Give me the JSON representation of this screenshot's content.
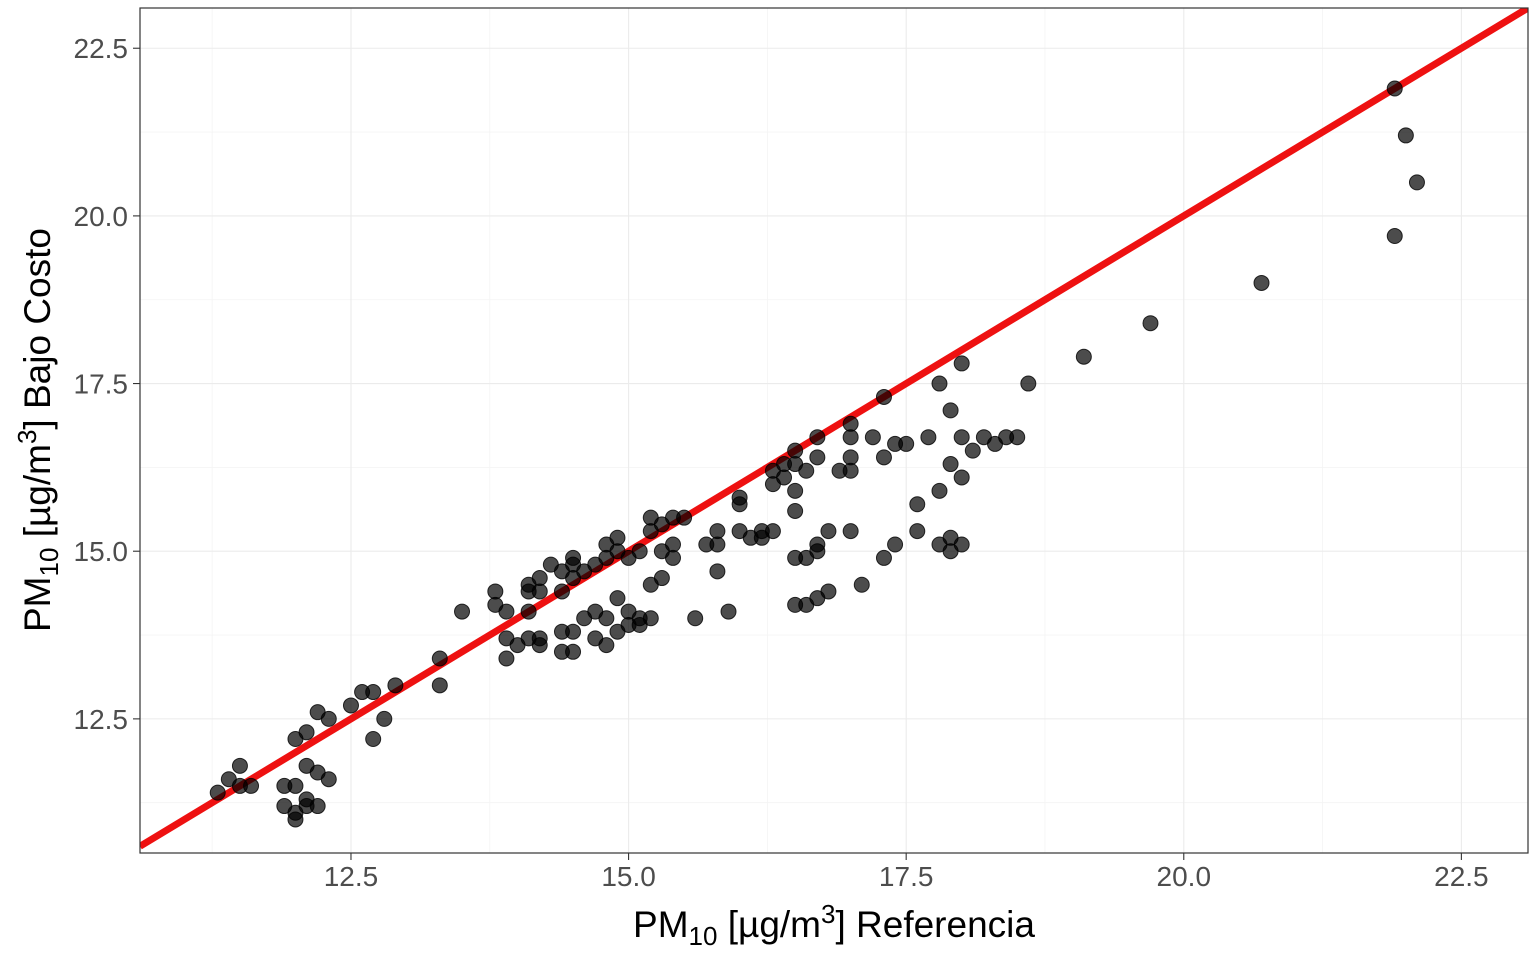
{
  "chart_data": {
    "type": "scatter",
    "xlabel": {
      "main": "PM",
      "sub": "10",
      "pre_unit": " [µg/m",
      "sup": "3",
      "post": "] Referencia"
    },
    "ylabel": {
      "main": "PM",
      "sub": "10",
      "pre_unit": " [µg/m",
      "sup": "3",
      "post": "] Bajo Costo"
    },
    "xlim": [
      10.6,
      23.1
    ],
    "ylim": [
      10.5,
      23.1
    ],
    "x_ticks": [
      12.5,
      15.0,
      17.5,
      20.0,
      22.5
    ],
    "y_ticks": [
      12.5,
      15.0,
      17.5,
      20.0,
      22.5
    ],
    "x_tick_labels": [
      "12.5",
      "15.0",
      "17.5",
      "20.0",
      "22.5"
    ],
    "y_tick_labels": [
      "12.5",
      "15.0",
      "17.5",
      "20.0",
      "22.5"
    ],
    "grid": true,
    "reference_line": {
      "slope": 1,
      "intercept": 0,
      "color": "#ee1111"
    },
    "point_color": "#000000",
    "points": [
      [
        11.3,
        11.4
      ],
      [
        11.4,
        11.6
      ],
      [
        11.5,
        11.5
      ],
      [
        11.5,
        11.8
      ],
      [
        11.6,
        11.5
      ],
      [
        11.9,
        11.5
      ],
      [
        12.0,
        11.5
      ],
      [
        11.9,
        11.2
      ],
      [
        12.0,
        11.1
      ],
      [
        12.0,
        11.0
      ],
      [
        12.1,
        11.3
      ],
      [
        12.1,
        11.2
      ],
      [
        12.2,
        11.2
      ],
      [
        12.1,
        11.8
      ],
      [
        12.2,
        11.7
      ],
      [
        12.3,
        11.6
      ],
      [
        12.0,
        12.2
      ],
      [
        12.1,
        12.3
      ],
      [
        12.2,
        12.6
      ],
      [
        12.3,
        12.5
      ],
      [
        12.5,
        12.7
      ],
      [
        12.6,
        12.9
      ],
      [
        12.7,
        12.9
      ],
      [
        12.7,
        12.2
      ],
      [
        12.8,
        12.5
      ],
      [
        12.9,
        13.0
      ],
      [
        13.3,
        13.4
      ],
      [
        13.3,
        13.0
      ],
      [
        13.5,
        14.1
      ],
      [
        13.8,
        14.4
      ],
      [
        13.8,
        14.2
      ],
      [
        13.9,
        14.1
      ],
      [
        13.9,
        13.7
      ],
      [
        14.0,
        13.6
      ],
      [
        13.9,
        13.4
      ],
      [
        14.1,
        14.1
      ],
      [
        14.1,
        14.4
      ],
      [
        14.1,
        14.5
      ],
      [
        14.2,
        14.6
      ],
      [
        14.2,
        14.4
      ],
      [
        14.3,
        14.8
      ],
      [
        14.4,
        14.4
      ],
      [
        14.5,
        14.8
      ],
      [
        14.5,
        14.9
      ],
      [
        14.4,
        14.7
      ],
      [
        14.5,
        14.6
      ],
      [
        14.6,
        14.7
      ],
      [
        14.7,
        14.8
      ],
      [
        14.8,
        14.9
      ],
      [
        14.8,
        15.1
      ],
      [
        14.9,
        15.0
      ],
      [
        14.9,
        15.2
      ],
      [
        15.0,
        14.9
      ],
      [
        15.1,
        15.0
      ],
      [
        15.2,
        15.5
      ],
      [
        15.2,
        15.3
      ],
      [
        15.3,
        15.4
      ],
      [
        15.4,
        15.1
      ],
      [
        15.4,
        15.5
      ],
      [
        15.5,
        15.5
      ],
      [
        15.3,
        15.0
      ],
      [
        15.2,
        14.5
      ],
      [
        15.3,
        14.6
      ],
      [
        15.4,
        14.9
      ],
      [
        14.1,
        13.7
      ],
      [
        14.2,
        13.7
      ],
      [
        14.2,
        13.6
      ],
      [
        14.4,
        13.8
      ],
      [
        14.4,
        13.5
      ],
      [
        14.5,
        13.8
      ],
      [
        14.5,
        13.5
      ],
      [
        14.6,
        14.0
      ],
      [
        14.7,
        14.1
      ],
      [
        14.7,
        13.7
      ],
      [
        14.8,
        14.0
      ],
      [
        14.8,
        13.6
      ],
      [
        14.9,
        13.8
      ],
      [
        14.9,
        14.3
      ],
      [
        15.0,
        14.1
      ],
      [
        15.0,
        13.9
      ],
      [
        15.1,
        13.9
      ],
      [
        15.2,
        14.0
      ],
      [
        15.1,
        14.0
      ],
      [
        15.6,
        14.0
      ],
      [
        15.7,
        15.1
      ],
      [
        15.8,
        15.3
      ],
      [
        15.8,
        15.1
      ],
      [
        15.8,
        14.7
      ],
      [
        15.9,
        14.1
      ],
      [
        16.0,
        15.7
      ],
      [
        16.0,
        15.8
      ],
      [
        16.0,
        15.3
      ],
      [
        16.1,
        15.2
      ],
      [
        16.2,
        15.2
      ],
      [
        16.2,
        15.3
      ],
      [
        16.3,
        15.3
      ],
      [
        16.3,
        16.0
      ],
      [
        16.3,
        16.2
      ],
      [
        16.4,
        16.3
      ],
      [
        16.5,
        16.5
      ],
      [
        16.5,
        16.3
      ],
      [
        16.4,
        16.1
      ],
      [
        16.5,
        15.9
      ],
      [
        16.5,
        15.6
      ],
      [
        16.6,
        16.2
      ],
      [
        16.7,
        16.4
      ],
      [
        16.7,
        16.7
      ],
      [
        16.5,
        14.9
      ],
      [
        16.6,
        14.9
      ],
      [
        16.7,
        15.0
      ],
      [
        16.7,
        15.1
      ],
      [
        16.5,
        14.2
      ],
      [
        16.6,
        14.2
      ],
      [
        16.7,
        14.3
      ],
      [
        16.8,
        14.4
      ],
      [
        16.8,
        15.3
      ],
      [
        16.9,
        16.2
      ],
      [
        17.0,
        16.2
      ],
      [
        17.0,
        16.9
      ],
      [
        17.0,
        16.7
      ],
      [
        17.0,
        16.4
      ],
      [
        17.0,
        15.3
      ],
      [
        17.1,
        14.5
      ],
      [
        17.3,
        14.9
      ],
      [
        17.2,
        16.7
      ],
      [
        17.3,
        17.3
      ],
      [
        17.3,
        16.4
      ],
      [
        17.4,
        16.6
      ],
      [
        17.5,
        16.6
      ],
      [
        17.4,
        15.1
      ],
      [
        17.6,
        15.3
      ],
      [
        17.6,
        15.7
      ],
      [
        17.7,
        16.7
      ],
      [
        17.8,
        17.5
      ],
      [
        17.8,
        15.1
      ],
      [
        17.8,
        15.9
      ],
      [
        17.9,
        15.2
      ],
      [
        17.9,
        15.0
      ],
      [
        17.9,
        16.3
      ],
      [
        17.9,
        17.1
      ],
      [
        18.0,
        16.1
      ],
      [
        18.0,
        16.7
      ],
      [
        18.0,
        15.1
      ],
      [
        18.0,
        17.8
      ],
      [
        18.1,
        16.5
      ],
      [
        18.2,
        16.7
      ],
      [
        18.3,
        16.6
      ],
      [
        18.4,
        16.7
      ],
      [
        18.5,
        16.7
      ],
      [
        18.6,
        17.5
      ],
      [
        19.1,
        17.9
      ],
      [
        19.7,
        18.4
      ],
      [
        20.7,
        19.0
      ],
      [
        21.9,
        21.9
      ],
      [
        21.9,
        19.7
      ],
      [
        22.0,
        21.2
      ],
      [
        22.1,
        20.5
      ]
    ]
  }
}
